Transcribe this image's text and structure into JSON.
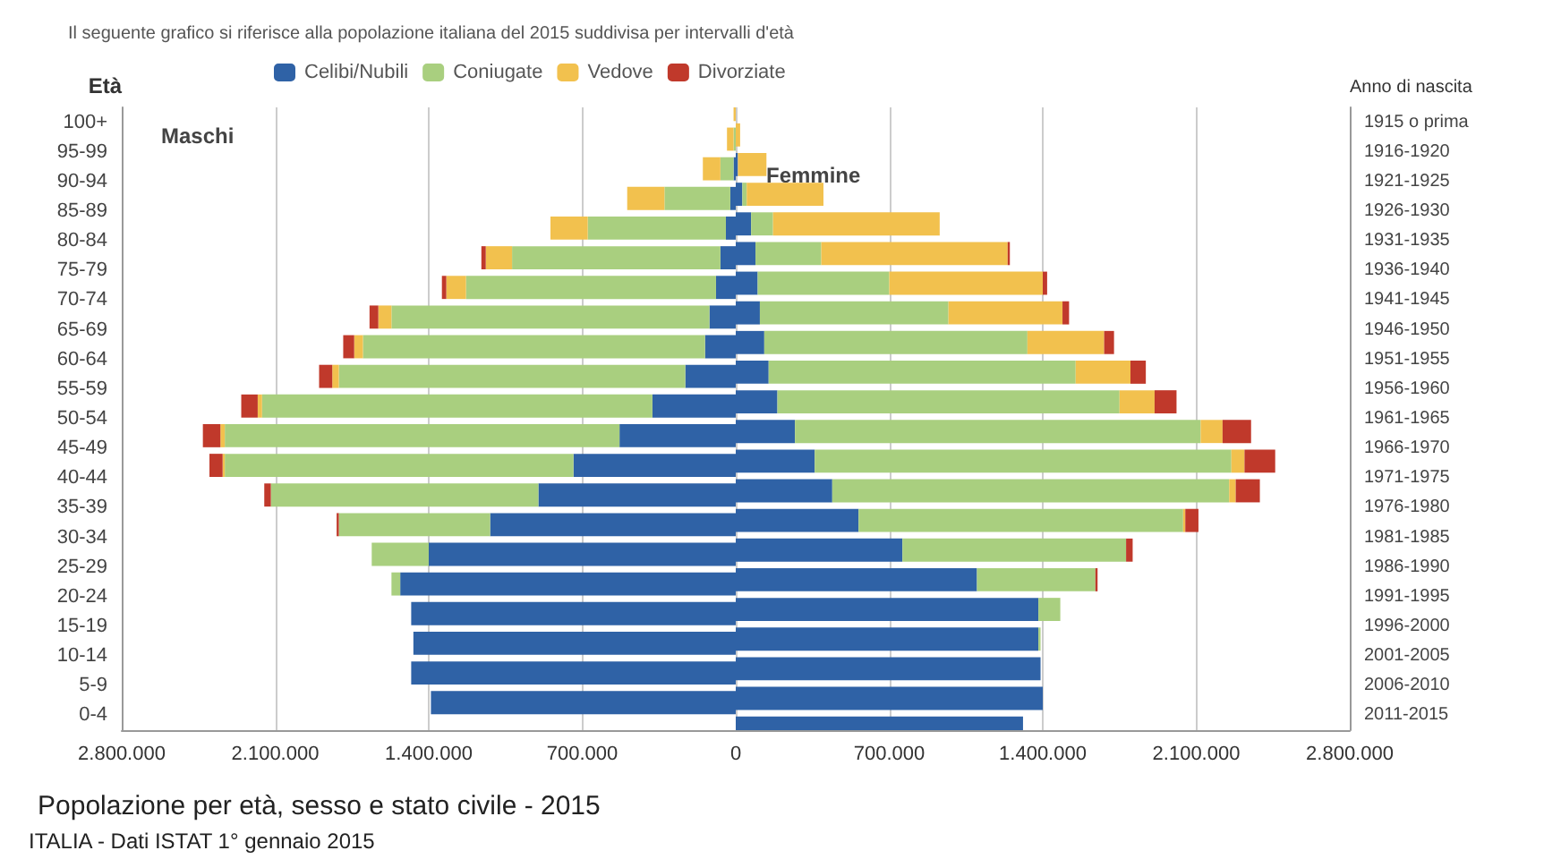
{
  "chart_data": {
    "type": "bar",
    "orientation": "horizontal",
    "stacked": true,
    "title": "Popolazione per età, sesso e stato civile - 2015",
    "ylabel": "Età",
    "y2label": "Anno di nascita",
    "annotations": [
      "Il seguente grafico si riferisce alla popolazione italiana del 2015 suddivisa per intervalli d'età",
      "Maschi",
      "Femmine",
      "ITALIA - Dati ISTAT 1° gennaio 2015"
    ],
    "categories": [
      "100+",
      "95-99",
      "90-94",
      "85-89",
      "80-84",
      "75-79",
      "70-74",
      "65-69",
      "60-64",
      "55-59",
      "50-54",
      "45-49",
      "40-44",
      "35-39",
      "30-34",
      "25-29",
      "20-24",
      "15-19",
      "10-14",
      "5-9",
      "0-4"
    ],
    "y2_categories": [
      "1915 o prima",
      "1916-1920",
      "1921-1925",
      "1926-1930",
      "1931-1935",
      "1936-1940",
      "1941-1945",
      "1946-1950",
      "1951-1955",
      "1956-1960",
      "1961-1965",
      "1966-1970",
      "1971-1975",
      "1976-1980",
      "1981-1985",
      "1986-1990",
      "1991-1995",
      "1996-2000",
      "2001-2005",
      "2006-2010",
      "2011-2015"
    ],
    "series": [
      {
        "color": "#2f62a6",
        "values": [
          null,
          null,
          -10000,
          -25000,
          -45000,
          -70000,
          -90000,
          -120000,
          -140000,
          -230000,
          -380000,
          -530000,
          -740000,
          -900000,
          -1120000,
          -1400000,
          -1530000,
          -1480000,
          -1470000,
          -1480000,
          -1390000
        ]
      },
      {
        "color": "#a9cf7f",
        "values": [
          null,
          -10000,
          -60000,
          -300000,
          -630000,
          -950000,
          -1140000,
          -1450000,
          -1560000,
          -1580000,
          -1780000,
          -1800000,
          -1590000,
          -1220000,
          -690000,
          -260000,
          -40000,
          null,
          null,
          null,
          null
        ]
      },
      {
        "color": "#f2c14e",
        "values": [
          -10000,
          -30000,
          -80000,
          -170000,
          -170000,
          -120000,
          -90000,
          -60000,
          -40000,
          -30000,
          -20000,
          -20000,
          -10000,
          null,
          null,
          null,
          null,
          null,
          null,
          null,
          null
        ]
      },
      {
        "color": "#c0392b",
        "values": [
          null,
          null,
          null,
          null,
          null,
          -20000,
          -20000,
          -40000,
          -50000,
          -60000,
          -75000,
          -80000,
          -60000,
          -30000,
          -10000,
          null,
          null,
          null,
          null,
          null,
          null
        ]
      },
      {
        "name": "Celibi/Nubili",
        "color": "#2f62a6",
        "values": [
          null,
          10000,
          30000,
          70000,
          90000,
          100000,
          110000,
          130000,
          150000,
          190000,
          270000,
          360000,
          440000,
          560000,
          760000,
          1100000,
          1380000,
          1380000,
          1390000,
          1400000,
          1310000
        ]
      },
      {
        "name": "Coniugate",
        "color": "#a9cf7f",
        "values": [
          null,
          null,
          20000,
          100000,
          300000,
          600000,
          860000,
          1200000,
          1400000,
          1560000,
          1850000,
          1900000,
          1810000,
          1480000,
          1020000,
          540000,
          100000,
          10000,
          null,
          null,
          null
        ]
      },
      {
        "name": "Vedove",
        "color": "#f2c14e",
        "values": [
          20000,
          130000,
          350000,
          760000,
          850000,
          700000,
          520000,
          350000,
          250000,
          160000,
          100000,
          60000,
          30000,
          10000,
          null,
          null,
          null,
          null,
          null,
          null,
          null
        ]
      },
      {
        "name": "Divorziate",
        "color": "#c0392b",
        "values": [
          null,
          null,
          null,
          null,
          10000,
          20000,
          30000,
          45000,
          70000,
          100000,
          130000,
          140000,
          110000,
          60000,
          30000,
          10000,
          null,
          null,
          null,
          null,
          null
        ]
      }
    ],
    "xlim": [
      -2800000,
      2800000
    ],
    "xticks": [
      {
        "value": -2800000,
        "label": "2.800.000"
      },
      {
        "value": -2100000,
        "label": "2.100.000"
      },
      {
        "value": -1400000,
        "label": "1.400.000"
      },
      {
        "value": -700000,
        "label": "700.000"
      },
      0,
      {
        "value": 700000,
        "label": "700.000"
      },
      {
        "value": 1400000,
        "label": "1.400.000"
      },
      {
        "value": 2100000,
        "label": "2.100.000"
      },
      {
        "value": 2800000,
        "label": "2.800.000"
      }
    ],
    "grid": "x",
    "legend": "top"
  }
}
